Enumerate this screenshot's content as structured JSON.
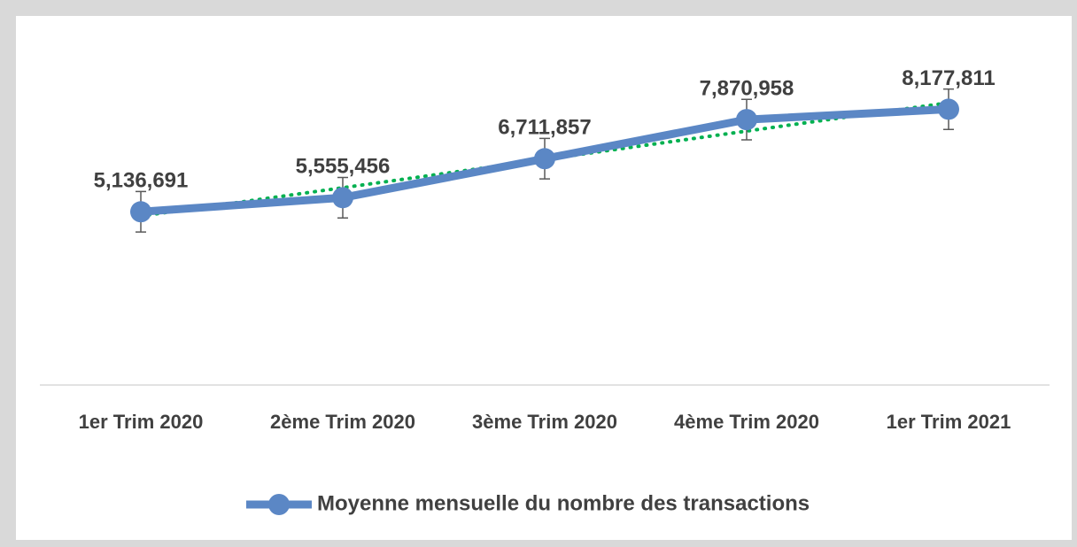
{
  "chart_data": {
    "type": "line",
    "categories": [
      "1er Trim 2020",
      "2ème Trim 2020",
      "3ème Trim 2020",
      "4ème Trim 2020",
      "1er Trim 2021"
    ],
    "series": [
      {
        "name": "Moyenne mensuelle du nombre des transactions",
        "color": "#5b87c5",
        "values": [
          5136691,
          5555456,
          6711857,
          7870958,
          8177811
        ],
        "value_labels": [
          "5,136,691",
          "5,555,456",
          "6,711,857",
          "7,870,958",
          "8,177,811"
        ],
        "errors": [
          600000,
          600000,
          600000,
          600000,
          600000
        ]
      }
    ],
    "ylim": [
      0,
      10000000
    ],
    "trendline": {
      "kind": "linear",
      "color": "#00b050"
    },
    "legend": "bottom"
  }
}
